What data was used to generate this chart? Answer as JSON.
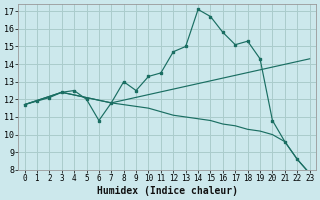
{
  "xlabel": "Humidex (Indice chaleur)",
  "bg_color": "#cce8ec",
  "grid_color": "#aacccc",
  "line_color": "#1a6e62",
  "xlim": [
    -0.5,
    23.5
  ],
  "ylim": [
    8,
    17.4
  ],
  "xticks": [
    0,
    1,
    2,
    3,
    4,
    5,
    6,
    7,
    8,
    9,
    10,
    11,
    12,
    13,
    14,
    15,
    16,
    17,
    18,
    19,
    20,
    21,
    22,
    23
  ],
  "yticks": [
    8,
    9,
    10,
    11,
    12,
    13,
    14,
    15,
    16,
    17
  ],
  "line1_x": [
    0,
    1,
    2,
    3,
    4,
    5,
    6,
    7,
    8,
    9,
    10,
    11,
    12,
    13,
    14,
    15,
    16,
    17,
    18,
    19,
    20,
    21,
    22,
    23
  ],
  "line1_y": [
    11.7,
    11.9,
    12.1,
    12.4,
    12.5,
    12.0,
    10.8,
    11.8,
    13.0,
    12.5,
    13.3,
    13.5,
    14.7,
    15.0,
    17.1,
    16.7,
    15.8,
    15.1,
    15.3,
    14.3,
    10.8,
    9.6,
    8.6,
    7.8
  ],
  "line2_x": [
    0,
    3,
    7,
    23
  ],
  "line2_y": [
    11.7,
    12.4,
    11.8,
    14.3
  ],
  "line3_x": [
    0,
    3,
    7,
    10,
    11,
    12,
    13,
    14,
    15,
    16,
    17,
    18,
    19,
    20,
    21,
    22,
    23
  ],
  "line3_y": [
    11.7,
    12.4,
    11.8,
    11.5,
    11.3,
    11.1,
    11.0,
    10.9,
    10.8,
    10.6,
    10.5,
    10.3,
    10.2,
    10.0,
    9.6,
    8.6,
    7.8
  ],
  "tick_fontsize": 5.5,
  "xlabel_fontsize": 7
}
